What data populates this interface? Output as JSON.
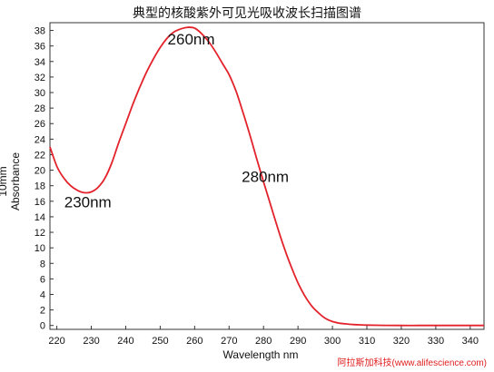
{
  "title": "典型的核酸紫外可见光吸收波长扫描图谱",
  "watermark": "阿拉斯加科技(www.alifescience.com)",
  "chart_data": {
    "type": "line",
    "xlabel": "Wavelength nm",
    "ylabel": "10mm Absorbance",
    "xlim": [
      218,
      344
    ],
    "ylim": [
      -0.5,
      39
    ],
    "xticks": [
      220,
      230,
      240,
      250,
      260,
      270,
      280,
      290,
      300,
      310,
      320,
      330,
      340
    ],
    "yticks": [
      0,
      2,
      4,
      6,
      8,
      10,
      12,
      14,
      16,
      18,
      20,
      22,
      24,
      26,
      28,
      30,
      32,
      34,
      36,
      38
    ],
    "grid": false,
    "line_color": "#e3232c",
    "series": [
      {
        "x": [
          218,
          220,
          222,
          224,
          226,
          228,
          230,
          232,
          234,
          236,
          238,
          240,
          242,
          244,
          246,
          248,
          250,
          252,
          254,
          256,
          258,
          260,
          262,
          264,
          266,
          268,
          270,
          272,
          274,
          276,
          278,
          280,
          282,
          284,
          286,
          288,
          290,
          292,
          294,
          296,
          298,
          300,
          302,
          304,
          306,
          308,
          310,
          315,
          320,
          325,
          330,
          335,
          340,
          344
        ],
        "y": [
          23,
          20.5,
          19,
          18,
          17.4,
          17.1,
          17.2,
          17.8,
          19,
          21,
          23.6,
          26,
          28.4,
          30.6,
          32.6,
          34.3,
          35.8,
          37,
          37.8,
          38.2,
          38.4,
          38.3,
          37.6,
          36.6,
          35.3,
          33.8,
          32.3,
          30.2,
          27.5,
          24.6,
          21.5,
          18.5,
          15.6,
          12.7,
          10,
          7.6,
          5.5,
          3.8,
          2.5,
          1.6,
          0.9,
          0.5,
          0.3,
          0.2,
          0.12,
          0.08,
          0.05,
          0.02,
          0.0,
          0.0,
          0.0,
          0.0,
          0.0,
          0.0
        ]
      }
    ],
    "annotations": [
      {
        "text": "260nm",
        "x": 259,
        "y": 36.2
      },
      {
        "text": "280nm",
        "x": 280.5,
        "y": 18.5
      },
      {
        "text": "230nm",
        "x": 229,
        "y": 15.2
      }
    ]
  }
}
